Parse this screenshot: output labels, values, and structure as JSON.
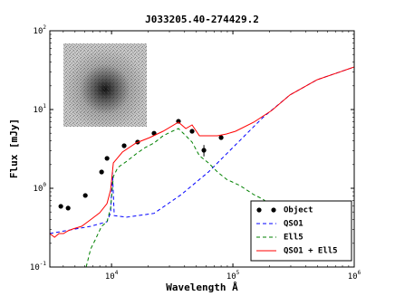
{
  "chart_data": {
    "type": "sed",
    "title": "J033205.40-274429.2",
    "xlabel": "Wavelength Å",
    "ylabel": "Flux [mJy]",
    "xscale": "log",
    "yscale": "log",
    "xlim": [
      3100,
      1000000
    ],
    "ylim": [
      0.1,
      100
    ],
    "xticks": [
      {
        "value": 10000,
        "label": "10^4"
      },
      {
        "value": 100000,
        "label": "10^5"
      },
      {
        "value": 1000000,
        "label": "10^6"
      }
    ],
    "yticks": [
      {
        "value": 0.1,
        "label": "10^-1"
      },
      {
        "value": 1,
        "label": "10^0"
      },
      {
        "value": 10,
        "label": "10^1"
      },
      {
        "value": 100,
        "label": "10^2"
      }
    ],
    "legend": "lower right",
    "series": [
      {
        "name": "Object",
        "kind": "scatter",
        "color": "#000000",
        "x": [
          3820,
          4385,
          6080,
          8280,
          9180,
          12700,
          16400,
          22400,
          35600,
          46100,
          57700,
          80000
        ],
        "values": [
          0.59,
          0.56,
          0.81,
          1.61,
          2.4,
          3.47,
          3.86,
          5.0,
          7.1,
          5.3,
          3.04,
          4.4
        ],
        "errors": [
          null,
          null,
          null,
          null,
          null,
          null,
          null,
          null,
          null,
          null,
          0.5,
          null
        ]
      },
      {
        "name": "QSO1",
        "kind": "line",
        "dash": "dashed",
        "color": "#0000ff",
        "x": [
          3100,
          6730,
          9180,
          9830,
          10170,
          10530,
          13390,
          22400,
          37500,
          62900,
          105200,
          176300,
          295100,
          494000,
          1000000
        ],
        "values": [
          0.266,
          0.329,
          0.376,
          0.49,
          1.61,
          0.45,
          0.43,
          0.48,
          0.83,
          1.61,
          3.56,
          7.89,
          15.3,
          23.9,
          34.7
        ]
      },
      {
        "name": "Ell5",
        "kind": "line",
        "dash": "dashed",
        "color": "#008000",
        "x": [
          6180,
          6730,
          7340,
          8280,
          9180,
          9830,
          10350,
          11280,
          13390,
          15900,
          18900,
          22400,
          26600,
          31600,
          35600,
          40900,
          46100,
          53000,
          62900,
          74700,
          88700,
          114800,
          148500,
          176300,
          209300,
          248600
        ],
        "values": [
          0.1,
          0.17,
          0.221,
          0.329,
          0.376,
          0.56,
          1.41,
          1.84,
          2.21,
          2.73,
          3.29,
          3.76,
          4.64,
          5.3,
          5.74,
          4.64,
          3.86,
          2.59,
          2.1,
          1.61,
          1.3,
          1.08,
          0.83,
          0.73,
          0.59,
          0.43
        ]
      },
      {
        "name": "QSO1 + Ell5",
        "kind": "line",
        "dash": "solid",
        "color": "#ff0000",
        "x": [
          3100,
          3390,
          3690,
          4020,
          4380,
          4780,
          5670,
          6730,
          8000,
          9180,
          9830,
          10350,
          12290,
          15900,
          20600,
          26600,
          35600,
          40900,
          46100,
          53000,
          74700,
          88700,
          105200,
          148500,
          209300,
          295100,
          494000,
          1000000
        ],
        "values": [
          0.266,
          0.239,
          0.266,
          0.266,
          0.288,
          0.304,
          0.329,
          0.4,
          0.49,
          0.64,
          0.95,
          2.1,
          2.88,
          3.76,
          4.4,
          5.3,
          6.9,
          5.74,
          6.38,
          4.64,
          4.64,
          4.9,
          5.3,
          6.9,
          9.75,
          15.3,
          23.9,
          34.7
        ]
      }
    ]
  }
}
